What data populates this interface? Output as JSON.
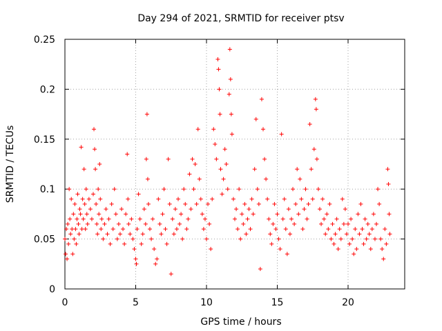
{
  "chart_data": {
    "type": "scatter",
    "title": "Day 294 of 2021, SRMTID for receiver ptsv",
    "xlabel": "GPS time / hours",
    "ylabel": "SRMTID / TECUs",
    "xlim": [
      0,
      24
    ],
    "ylim": [
      0,
      0.25
    ],
    "x_ticks": [
      0,
      5,
      10,
      15,
      20
    ],
    "x_tick_labels": [
      "0",
      "5",
      "10",
      "15",
      "20"
    ],
    "y_ticks": [
      0,
      0.05,
      0.1,
      0.15,
      0.2,
      0.25
    ],
    "y_tick_labels": [
      "0",
      "0.05",
      "0.1",
      "0.15",
      "0.2",
      "0.25"
    ],
    "grid": true,
    "marker": "+",
    "series": [
      {
        "name": "SRMTID",
        "color": "#ff0000",
        "points": [
          [
            0.0,
            0.05
          ],
          [
            0.05,
            0.035
          ],
          [
            0.1,
            0.06
          ],
          [
            0.15,
            0.03
          ],
          [
            0.2,
            0.065
          ],
          [
            0.25,
            0.045
          ],
          [
            0.3,
            0.1
          ],
          [
            0.35,
            0.07
          ],
          [
            0.4,
            0.055
          ],
          [
            0.45,
            0.09
          ],
          [
            0.5,
            0.06
          ],
          [
            0.55,
            0.035
          ],
          [
            0.6,
            0.075
          ],
          [
            0.65,
            0.05
          ],
          [
            0.7,
            0.085
          ],
          [
            0.75,
            0.06
          ],
          [
            0.8,
            0.045
          ],
          [
            0.85,
            0.07
          ],
          [
            0.9,
            0.095
          ],
          [
            0.95,
            0.065
          ],
          [
            1.0,
            0.055
          ],
          [
            1.05,
            0.08
          ],
          [
            1.1,
            0.075
          ],
          [
            1.15,
            0.142
          ],
          [
            1.2,
            0.06
          ],
          [
            1.25,
            0.09
          ],
          [
            1.3,
            0.07
          ],
          [
            1.35,
            0.12
          ],
          [
            1.4,
            0.085
          ],
          [
            1.45,
            0.06
          ],
          [
            1.5,
            0.1
          ],
          [
            1.55,
            0.075
          ],
          [
            1.6,
            0.065
          ],
          [
            1.7,
            0.09
          ],
          [
            1.8,
            0.08
          ],
          [
            1.9,
            0.07
          ],
          [
            2.0,
            0.095
          ],
          [
            2.05,
            0.16
          ],
          [
            2.1,
            0.14
          ],
          [
            2.15,
            0.12
          ],
          [
            2.2,
            0.085
          ],
          [
            2.25,
            0.065
          ],
          [
            2.3,
            0.055
          ],
          [
            2.35,
            0.1
          ],
          [
            2.4,
            0.075
          ],
          [
            2.45,
            0.125
          ],
          [
            2.5,
            0.09
          ],
          [
            2.55,
            0.06
          ],
          [
            2.6,
            0.07
          ],
          [
            2.7,
            0.05
          ],
          [
            2.8,
            0.065
          ],
          [
            2.9,
            0.08
          ],
          [
            3.0,
            0.055
          ],
          [
            3.1,
            0.07
          ],
          [
            3.2,
            0.045
          ],
          [
            3.3,
            0.085
          ],
          [
            3.4,
            0.06
          ],
          [
            3.5,
            0.1
          ],
          [
            3.6,
            0.075
          ],
          [
            3.7,
            0.05
          ],
          [
            3.8,
            0.065
          ],
          [
            3.9,
            0.055
          ],
          [
            4.0,
            0.08
          ],
          [
            4.1,
            0.06
          ],
          [
            4.2,
            0.045
          ],
          [
            4.3,
            0.075
          ],
          [
            4.4,
            0.135
          ],
          [
            4.45,
            0.09
          ],
          [
            4.5,
            0.065
          ],
          [
            4.6,
            0.055
          ],
          [
            4.7,
            0.07
          ],
          [
            4.8,
            0.05
          ],
          [
            4.9,
            0.04
          ],
          [
            5.0,
            0.03
          ],
          [
            5.05,
            0.025
          ],
          [
            5.1,
            0.06
          ],
          [
            5.2,
            0.095
          ],
          [
            5.3,
            0.07
          ],
          [
            5.4,
            0.045
          ],
          [
            5.5,
            0.055
          ],
          [
            5.6,
            0.08
          ],
          [
            5.7,
            0.065
          ],
          [
            5.75,
            0.13
          ],
          [
            5.8,
            0.175
          ],
          [
            5.85,
            0.11
          ],
          [
            5.9,
            0.085
          ],
          [
            6.0,
            0.06
          ],
          [
            6.1,
            0.05
          ],
          [
            6.2,
            0.07
          ],
          [
            6.3,
            0.04
          ],
          [
            6.4,
            0.025
          ],
          [
            6.5,
            0.03
          ],
          [
            6.6,
            0.09
          ],
          [
            6.7,
            0.065
          ],
          [
            6.8,
            0.055
          ],
          [
            6.9,
            0.075
          ],
          [
            7.0,
            0.1
          ],
          [
            7.1,
            0.06
          ],
          [
            7.2,
            0.045
          ],
          [
            7.3,
            0.13
          ],
          [
            7.4,
            0.085
          ],
          [
            7.5,
            0.015
          ],
          [
            7.6,
            0.07
          ],
          [
            7.7,
            0.055
          ],
          [
            7.8,
            0.08
          ],
          [
            7.9,
            0.06
          ],
          [
            8.0,
            0.09
          ],
          [
            8.1,
            0.065
          ],
          [
            8.2,
            0.075
          ],
          [
            8.3,
            0.05
          ],
          [
            8.4,
            0.1
          ],
          [
            8.5,
            0.085
          ],
          [
            8.6,
            0.06
          ],
          [
            8.7,
            0.07
          ],
          [
            8.8,
            0.115
          ],
          [
            8.9,
            0.08
          ],
          [
            9.0,
            0.13
          ],
          [
            9.1,
            0.1
          ],
          [
            9.2,
            0.125
          ],
          [
            9.3,
            0.085
          ],
          [
            9.4,
            0.16
          ],
          [
            9.5,
            0.11
          ],
          [
            9.6,
            0.09
          ],
          [
            9.7,
            0.075
          ],
          [
            9.8,
            0.06
          ],
          [
            9.9,
            0.07
          ],
          [
            10.0,
            0.05
          ],
          [
            10.1,
            0.085
          ],
          [
            10.2,
            0.065
          ],
          [
            10.3,
            0.04
          ],
          [
            10.4,
            0.09
          ],
          [
            10.5,
            0.16
          ],
          [
            10.6,
            0.145
          ],
          [
            10.7,
            0.13
          ],
          [
            10.8,
            0.23
          ],
          [
            10.85,
            0.22
          ],
          [
            10.9,
            0.2
          ],
          [
            10.95,
            0.175
          ],
          [
            11.0,
            0.12
          ],
          [
            11.1,
            0.095
          ],
          [
            11.2,
            0.11
          ],
          [
            11.3,
            0.14
          ],
          [
            11.4,
            0.125
          ],
          [
            11.5,
            0.1
          ],
          [
            11.6,
            0.195
          ],
          [
            11.65,
            0.24
          ],
          [
            11.7,
            0.21
          ],
          [
            11.75,
            0.175
          ],
          [
            11.8,
            0.155
          ],
          [
            11.9,
            0.09
          ],
          [
            12.0,
            0.07
          ],
          [
            12.1,
            0.08
          ],
          [
            12.2,
            0.06
          ],
          [
            12.3,
            0.1
          ],
          [
            12.4,
            0.05
          ],
          [
            12.5,
            0.075
          ],
          [
            12.6,
            0.065
          ],
          [
            12.7,
            0.085
          ],
          [
            12.8,
            0.055
          ],
          [
            12.9,
            0.07
          ],
          [
            13.0,
            0.08
          ],
          [
            13.1,
            0.06
          ],
          [
            13.2,
            0.09
          ],
          [
            13.3,
            0.075
          ],
          [
            13.4,
            0.12
          ],
          [
            13.5,
            0.17
          ],
          [
            13.6,
            0.1
          ],
          [
            13.7,
            0.085
          ],
          [
            13.8,
            0.02
          ],
          [
            13.9,
            0.19
          ],
          [
            14.0,
            0.16
          ],
          [
            14.1,
            0.13
          ],
          [
            14.2,
            0.11
          ],
          [
            14.3,
            0.09
          ],
          [
            14.4,
            0.07
          ],
          [
            14.5,
            0.055
          ],
          [
            14.6,
            0.045
          ],
          [
            14.7,
            0.065
          ],
          [
            14.8,
            0.085
          ],
          [
            14.9,
            0.06
          ],
          [
            15.0,
            0.075
          ],
          [
            15.1,
            0.05
          ],
          [
            15.2,
            0.04
          ],
          [
            15.3,
            0.155
          ],
          [
            15.4,
            0.07
          ],
          [
            15.5,
            0.09
          ],
          [
            15.6,
            0.06
          ],
          [
            15.7,
            0.035
          ],
          [
            15.8,
            0.08
          ],
          [
            15.9,
            0.055
          ],
          [
            16.0,
            0.07
          ],
          [
            16.1,
            0.1
          ],
          [
            16.2,
            0.065
          ],
          [
            16.3,
            0.085
          ],
          [
            16.4,
            0.12
          ],
          [
            16.5,
            0.075
          ],
          [
            16.6,
            0.11
          ],
          [
            16.7,
            0.09
          ],
          [
            16.8,
            0.06
          ],
          [
            16.9,
            0.08
          ],
          [
            17.0,
            0.1
          ],
          [
            17.1,
            0.07
          ],
          [
            17.2,
            0.085
          ],
          [
            17.3,
            0.165
          ],
          [
            17.4,
            0.12
          ],
          [
            17.5,
            0.09
          ],
          [
            17.6,
            0.14
          ],
          [
            17.7,
            0.19
          ],
          [
            17.75,
            0.18
          ],
          [
            17.8,
            0.13
          ],
          [
            17.9,
            0.1
          ],
          [
            18.0,
            0.08
          ],
          [
            18.1,
            0.065
          ],
          [
            18.2,
            0.09
          ],
          [
            18.3,
            0.07
          ],
          [
            18.4,
            0.055
          ],
          [
            18.5,
            0.075
          ],
          [
            18.6,
            0.06
          ],
          [
            18.7,
            0.085
          ],
          [
            18.8,
            0.05
          ],
          [
            18.9,
            0.065
          ],
          [
            19.0,
            0.045
          ],
          [
            19.1,
            0.055
          ],
          [
            19.2,
            0.07
          ],
          [
            19.3,
            0.04
          ],
          [
            19.4,
            0.06
          ],
          [
            19.5,
            0.05
          ],
          [
            19.6,
            0.09
          ],
          [
            19.7,
            0.065
          ],
          [
            19.8,
            0.08
          ],
          [
            19.9,
            0.055
          ],
          [
            20.0,
            0.065
          ],
          [
            20.1,
            0.045
          ],
          [
            20.2,
            0.07
          ],
          [
            20.3,
            0.05
          ],
          [
            20.4,
            0.035
          ],
          [
            20.5,
            0.06
          ],
          [
            20.6,
            0.04
          ],
          [
            20.7,
            0.075
          ],
          [
            20.8,
            0.055
          ],
          [
            20.9,
            0.085
          ],
          [
            21.0,
            0.06
          ],
          [
            21.1,
            0.045
          ],
          [
            21.2,
            0.07
          ],
          [
            21.3,
            0.05
          ],
          [
            21.4,
            0.065
          ],
          [
            21.5,
            0.055
          ],
          [
            21.6,
            0.04
          ],
          [
            21.7,
            0.06
          ],
          [
            21.8,
            0.075
          ],
          [
            21.9,
            0.05
          ],
          [
            22.0,
            0.065
          ],
          [
            22.1,
            0.1
          ],
          [
            22.2,
            0.085
          ],
          [
            22.3,
            0.05
          ],
          [
            22.4,
            0.04
          ],
          [
            22.5,
            0.03
          ],
          [
            22.6,
            0.06
          ],
          [
            22.7,
            0.045
          ],
          [
            22.8,
            0.12
          ],
          [
            22.85,
            0.105
          ],
          [
            22.9,
            0.075
          ],
          [
            22.95,
            0.055
          ]
        ]
      }
    ]
  }
}
